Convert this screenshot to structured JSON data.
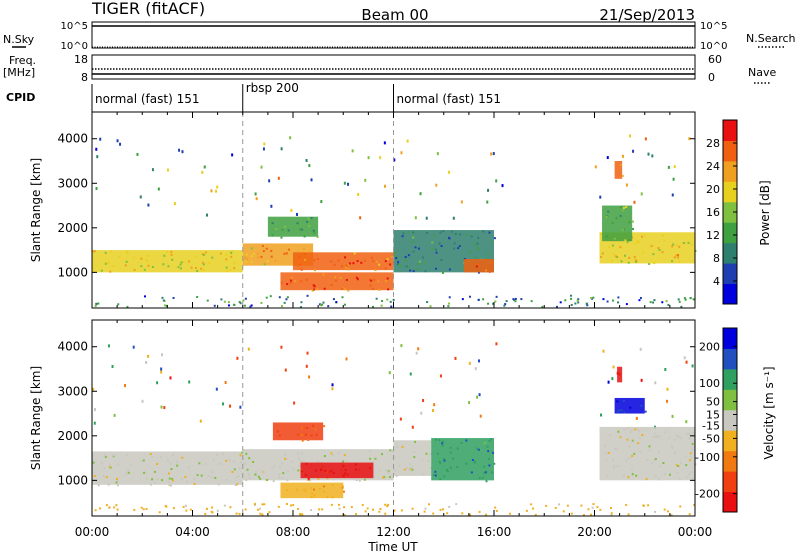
{
  "header": {
    "radar": "TIGER (fitACF)",
    "beam": "Beam 00",
    "date": "21/Sep/2013"
  },
  "sky_panel": {
    "left_label": "N.Sky",
    "right_label": "N.Search",
    "left_ticks": [
      "10^5",
      "10^0"
    ],
    "right_ticks": [
      "10^5",
      "10^0"
    ]
  },
  "freq_panel": {
    "left_label_1": "Freq.",
    "left_label_2": "[MHz]",
    "right_label": "Nave",
    "left_ticks": [
      "18",
      "8"
    ],
    "right_ticks": [
      "60",
      "0"
    ]
  },
  "cpid": {
    "label": "CPID",
    "segments": [
      {
        "name": "normal (fast) 151",
        "start_h": 0,
        "end_h": 6
      },
      {
        "name": "rbsp 200",
        "start_h": 6,
        "end_h": 12
      },
      {
        "name": "normal (fast) 151",
        "start_h": 12,
        "end_h": 24
      }
    ]
  },
  "colors": {
    "power": [
      "#0000dd",
      "#1f3fb0",
      "#2f7f6f",
      "#3fa040",
      "#7fc040",
      "#e8d020",
      "#f0a020",
      "#f06010",
      "#e81010"
    ],
    "velocity": [
      "#e81010",
      "#f04010",
      "#f07a10",
      "#f0b020",
      "#c8c8c0",
      "#80c040",
      "#30a060",
      "#2050c0",
      "#0000dd"
    ]
  },
  "chart_data": [
    {
      "type": "heatmap",
      "name": "power",
      "xlabel": "",
      "ylabel": "Slant Range [km]",
      "xlim": [
        0,
        24
      ],
      "ylim": [
        200,
        4600
      ],
      "yticks": [
        "1000",
        "2000",
        "3000",
        "4000"
      ],
      "colorbar": {
        "label": "Power [dB]",
        "ticks": [
          "4",
          "8",
          "12",
          "16",
          "20",
          "24",
          "28"
        ],
        "range": [
          0,
          32
        ]
      },
      "features": [
        {
          "t0": 0.0,
          "t1": 6.0,
          "r0": 1000,
          "r1": 1500,
          "value": 20
        },
        {
          "t0": 6.0,
          "t1": 8.8,
          "r0": 1150,
          "r1": 1650,
          "value": 22
        },
        {
          "t0": 7.0,
          "t1": 9.0,
          "r0": 1800,
          "r1": 2250,
          "value": 12
        },
        {
          "t0": 8.0,
          "t1": 12.0,
          "r0": 1050,
          "r1": 1450,
          "value": 26
        },
        {
          "t0": 7.5,
          "t1": 12.0,
          "r0": 600,
          "r1": 1000,
          "value": 28
        },
        {
          "t0": 12.0,
          "t1": 16.0,
          "r0": 1000,
          "r1": 1950,
          "value": 10
        },
        {
          "t0": 14.8,
          "t1": 16.0,
          "r0": 1000,
          "r1": 1300,
          "value": 26
        },
        {
          "t0": 20.2,
          "t1": 24.0,
          "r0": 1200,
          "r1": 1900,
          "value": 20
        },
        {
          "t0": 20.3,
          "t1": 21.5,
          "r0": 1700,
          "r1": 2500,
          "value": 14
        },
        {
          "t0": 20.8,
          "t1": 21.1,
          "r0": 3100,
          "r1": 3500,
          "value": 28
        }
      ]
    },
    {
      "type": "heatmap",
      "name": "velocity",
      "xlabel": "Time UT",
      "ylabel": "Slant Range [km]",
      "xlim": [
        0,
        24
      ],
      "ylim": [
        200,
        4600
      ],
      "xticks": [
        "00:00",
        "04:00",
        "08:00",
        "12:00",
        "16:00",
        "20:00",
        "00:00"
      ],
      "yticks": [
        "1000",
        "2000",
        "3000",
        "4000"
      ],
      "colorbar": {
        "label": "Velocity [m s⁻¹]",
        "ticks": [
          "200",
          "100",
          "50",
          "15",
          "-15",
          "-50",
          "-100",
          "-200"
        ],
        "range": [
          -250,
          250
        ]
      },
      "features": [
        {
          "t0": 0.0,
          "t1": 6.0,
          "r0": 900,
          "r1": 1650,
          "value": 0
        },
        {
          "t0": 6.0,
          "t1": 12.0,
          "r0": 1000,
          "r1": 1700,
          "value": 0
        },
        {
          "t0": 7.2,
          "t1": 9.2,
          "r0": 1900,
          "r1": 2300,
          "value": -150
        },
        {
          "t0": 8.3,
          "t1": 11.2,
          "r0": 1050,
          "r1": 1400,
          "value": -220
        },
        {
          "t0": 7.5,
          "t1": 10.0,
          "r0": 600,
          "r1": 950,
          "value": -70
        },
        {
          "t0": 12.0,
          "t1": 13.5,
          "r0": 1100,
          "r1": 1900,
          "value": 5
        },
        {
          "t0": 13.5,
          "t1": 16.0,
          "r0": 1000,
          "r1": 1950,
          "value": 120
        },
        {
          "t0": 20.2,
          "t1": 24.0,
          "r0": 1000,
          "r1": 2200,
          "value": 0
        },
        {
          "t0": 20.8,
          "t1": 22.0,
          "r0": 2500,
          "r1": 2850,
          "value": 200
        },
        {
          "t0": 20.9,
          "t1": 21.1,
          "r0": 3200,
          "r1": 3550,
          "value": -220
        }
      ]
    }
  ]
}
